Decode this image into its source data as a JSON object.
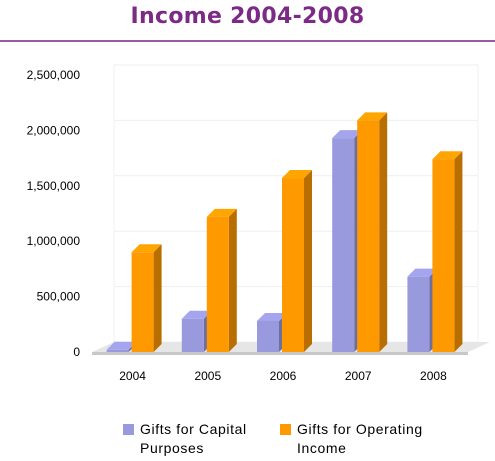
{
  "chart_data": {
    "type": "bar",
    "title": "Income 2004-2008",
    "categories": [
      "2004",
      "2005",
      "2006",
      "2007",
      "2008"
    ],
    "series": [
      {
        "name": "Gifts for Capital Purposes",
        "color": "#9999dd",
        "values": [
          20000,
          300000,
          280000,
          1930000,
          680000
        ]
      },
      {
        "name": "Gifts for Operating Income",
        "color": "#ff9900",
        "values": [
          900000,
          1220000,
          1570000,
          2090000,
          1740000
        ]
      }
    ],
    "yticks": [
      "0",
      "500,000",
      "1,000,000",
      "1,500,000",
      "2,000,000",
      "2,500,000"
    ],
    "ylim": [
      0,
      2500000
    ],
    "xlabel": "",
    "ylabel": "",
    "grid": true,
    "legend_position": "bottom"
  }
}
